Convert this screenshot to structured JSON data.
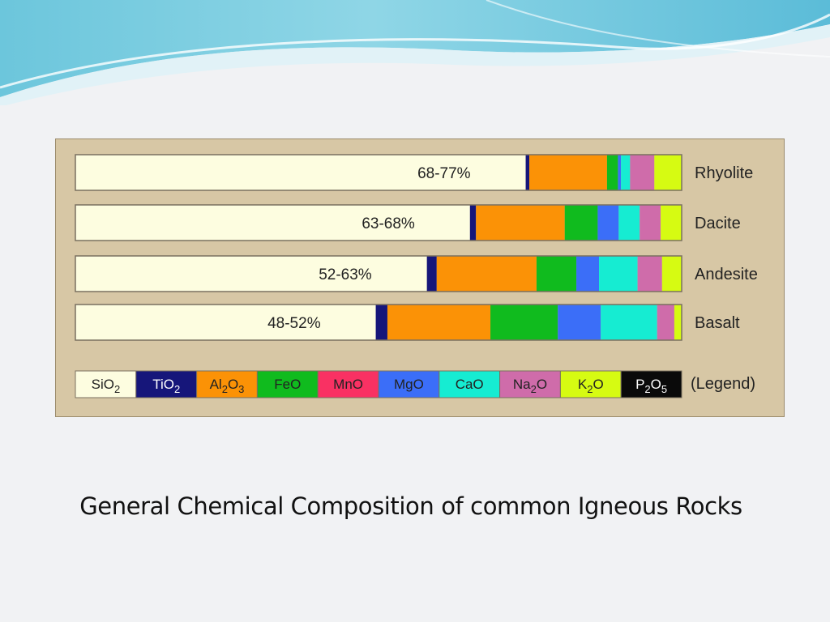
{
  "caption": "General Chemical Composition of common Igneous Rocks",
  "legend_title": "(Legend)",
  "chart_data": {
    "type": "bar",
    "orientation": "horizontal",
    "stacked": true,
    "unit": "relative proportion (%)",
    "components": [
      {
        "key": "SiO2",
        "base": "SiO",
        "sub": "2",
        "color": "#fdfde0",
        "text_color": "#222222"
      },
      {
        "key": "TiO2",
        "base": "TiO",
        "sub": "2",
        "color": "#16167a",
        "text_color": "#ffffff"
      },
      {
        "key": "Al2O3",
        "parts": [
          [
            "Al",
            ""
          ],
          [
            "2",
            "sub"
          ],
          [
            "O",
            ""
          ],
          [
            "3",
            "sub"
          ]
        ],
        "color": "#fb9206",
        "text_color": "#222222"
      },
      {
        "key": "FeO",
        "base": "FeO",
        "color": "#10bb1e",
        "text_color": "#222222"
      },
      {
        "key": "MnO",
        "base": "MnO",
        "color": "#f93163",
        "text_color": "#222222"
      },
      {
        "key": "MgO",
        "base": "MgO",
        "color": "#3b6ef8",
        "text_color": "#222222"
      },
      {
        "key": "CaO",
        "base": "CaO",
        "color": "#16ecd2",
        "text_color": "#222222"
      },
      {
        "key": "Na2O",
        "parts": [
          [
            "Na",
            ""
          ],
          [
            "2",
            "sub"
          ],
          [
            "O",
            ""
          ]
        ],
        "color": "#cf6caa",
        "text_color": "#222222"
      },
      {
        "key": "K2O",
        "parts": [
          [
            "K",
            ""
          ],
          [
            "2",
            "sub"
          ],
          [
            "O",
            ""
          ]
        ],
        "color": "#d6fb12",
        "text_color": "#222222"
      },
      {
        "key": "P2O5",
        "parts": [
          [
            "P",
            ""
          ],
          [
            "2",
            "sub"
          ],
          [
            "O",
            ""
          ],
          [
            "5",
            "sub"
          ]
        ],
        "color": "#0a0a0a",
        "text_color": "#ffffff"
      }
    ],
    "rocks": [
      {
        "name": "Rhyolite",
        "range": "68-77%",
        "values": {
          "SiO2": 74.2,
          "TiO2": 0.6,
          "Al2O3": 12.8,
          "FeO": 1.8,
          "MgO": 0.5,
          "CaO": 1.5,
          "Na2O": 4.0,
          "K2O": 4.5
        }
      },
      {
        "name": "Dacite",
        "range": "63-68%",
        "values": {
          "SiO2": 65.8,
          "TiO2": 1.0,
          "Al2O3": 14.8,
          "FeO": 5.5,
          "MgO": 3.5,
          "CaO": 3.5,
          "Na2O": 3.5,
          "K2O": 3.5
        }
      },
      {
        "name": "Andesite",
        "range": "52-63%",
        "values": {
          "SiO2": 57.4,
          "TiO2": 1.6,
          "Al2O3": 16.3,
          "FeO": 6.5,
          "MgO": 3.7,
          "CaO": 6.3,
          "Na2O": 4.0,
          "K2O": 3.2
        }
      },
      {
        "name": "Basalt",
        "range": "48-52%",
        "values": {
          "SiO2": 49.0,
          "TiO2": 1.9,
          "Al2O3": 16.8,
          "FeO": 11.0,
          "MgO": 7.0,
          "CaO": 9.2,
          "Na2O": 2.8,
          "K2O": 1.2
        }
      }
    ]
  }
}
